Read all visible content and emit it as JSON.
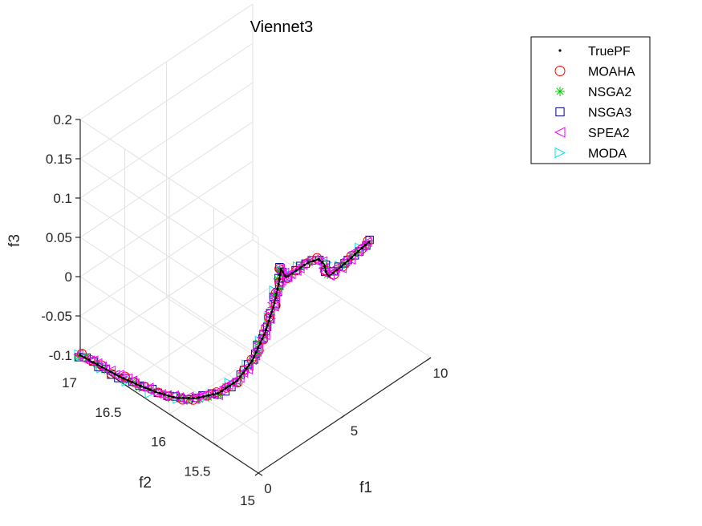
{
  "chart_data": {
    "type": "scatter",
    "title": "Viennet3",
    "xlabel": "f1",
    "ylabel": "f2",
    "zlabel": "f3",
    "x_ticks": [
      "0",
      "5",
      "10"
    ],
    "y_ticks": [
      "15",
      "15.5",
      "16",
      "16.5",
      "17"
    ],
    "z_ticks": [
      "-0.1",
      "-0.05",
      "0",
      "0.05",
      "0.1",
      "0.15",
      "0.2"
    ],
    "xlim": [
      0,
      10
    ],
    "ylim": [
      15,
      17
    ],
    "zlim": [
      -0.1,
      0.2
    ],
    "grid": true,
    "legend_position": "top-right",
    "series": [
      {
        "name": "TruePF",
        "marker": "dot",
        "color": "#000000"
      },
      {
        "name": "MOAHA",
        "marker": "circle",
        "color": "#ff0000"
      },
      {
        "name": "NSGA2",
        "marker": "asterisk",
        "color": "#00cc00"
      },
      {
        "name": "NSGA3",
        "marker": "square",
        "color": "#00008b"
      },
      {
        "name": "SPEA2",
        "marker": "triangle-left",
        "color": "#ff00ff"
      },
      {
        "name": "MODA",
        "marker": "triangle-right",
        "color": "#00e5ee"
      }
    ],
    "front_path": [
      {
        "f1": 0.0,
        "f2": 17.0,
        "f3": -0.1
      },
      {
        "f1": 0.1,
        "f2": 16.8,
        "f3": -0.1
      },
      {
        "f1": 0.2,
        "f2": 16.6,
        "f3": -0.1
      },
      {
        "f1": 0.4,
        "f2": 16.4,
        "f3": -0.1
      },
      {
        "f1": 0.6,
        "f2": 16.25,
        "f3": -0.1
      },
      {
        "f1": 0.9,
        "f2": 16.1,
        "f3": -0.1
      },
      {
        "f1": 1.3,
        "f2": 15.95,
        "f3": -0.095
      },
      {
        "f1": 1.8,
        "f2": 15.8,
        "f3": -0.085
      },
      {
        "f1": 2.4,
        "f2": 15.7,
        "f3": -0.07
      },
      {
        "f1": 3.0,
        "f2": 15.65,
        "f3": -0.05
      },
      {
        "f1": 3.6,
        "f2": 15.62,
        "f3": -0.02
      },
      {
        "f1": 4.0,
        "f2": 15.6,
        "f3": 0.01
      },
      {
        "f1": 4.3,
        "f2": 15.6,
        "f3": 0.035
      },
      {
        "f1": 4.4,
        "f2": 15.6,
        "f3": 0.05
      },
      {
        "f1": 4.55,
        "f2": 15.62,
        "f3": 0.045
      },
      {
        "f1": 4.7,
        "f2": 15.6,
        "f3": 0.035
      },
      {
        "f1": 5.3,
        "f2": 15.6,
        "f3": 0.035
      },
      {
        "f1": 6.0,
        "f2": 15.6,
        "f3": 0.035
      },
      {
        "f1": 6.6,
        "f2": 15.6,
        "f3": 0.03
      },
      {
        "f1": 6.9,
        "f2": 15.6,
        "f3": 0.02
      },
      {
        "f1": 7.05,
        "f2": 15.6,
        "f3": 0.005
      },
      {
        "f1": 7.2,
        "f2": 15.6,
        "f3": 0.0
      },
      {
        "f1": 8.0,
        "f2": 15.6,
        "f3": 0.002
      },
      {
        "f1": 8.8,
        "f2": 15.6,
        "f3": 0.006
      },
      {
        "f1": 9.6,
        "f2": 15.6,
        "f3": 0.01
      }
    ]
  }
}
